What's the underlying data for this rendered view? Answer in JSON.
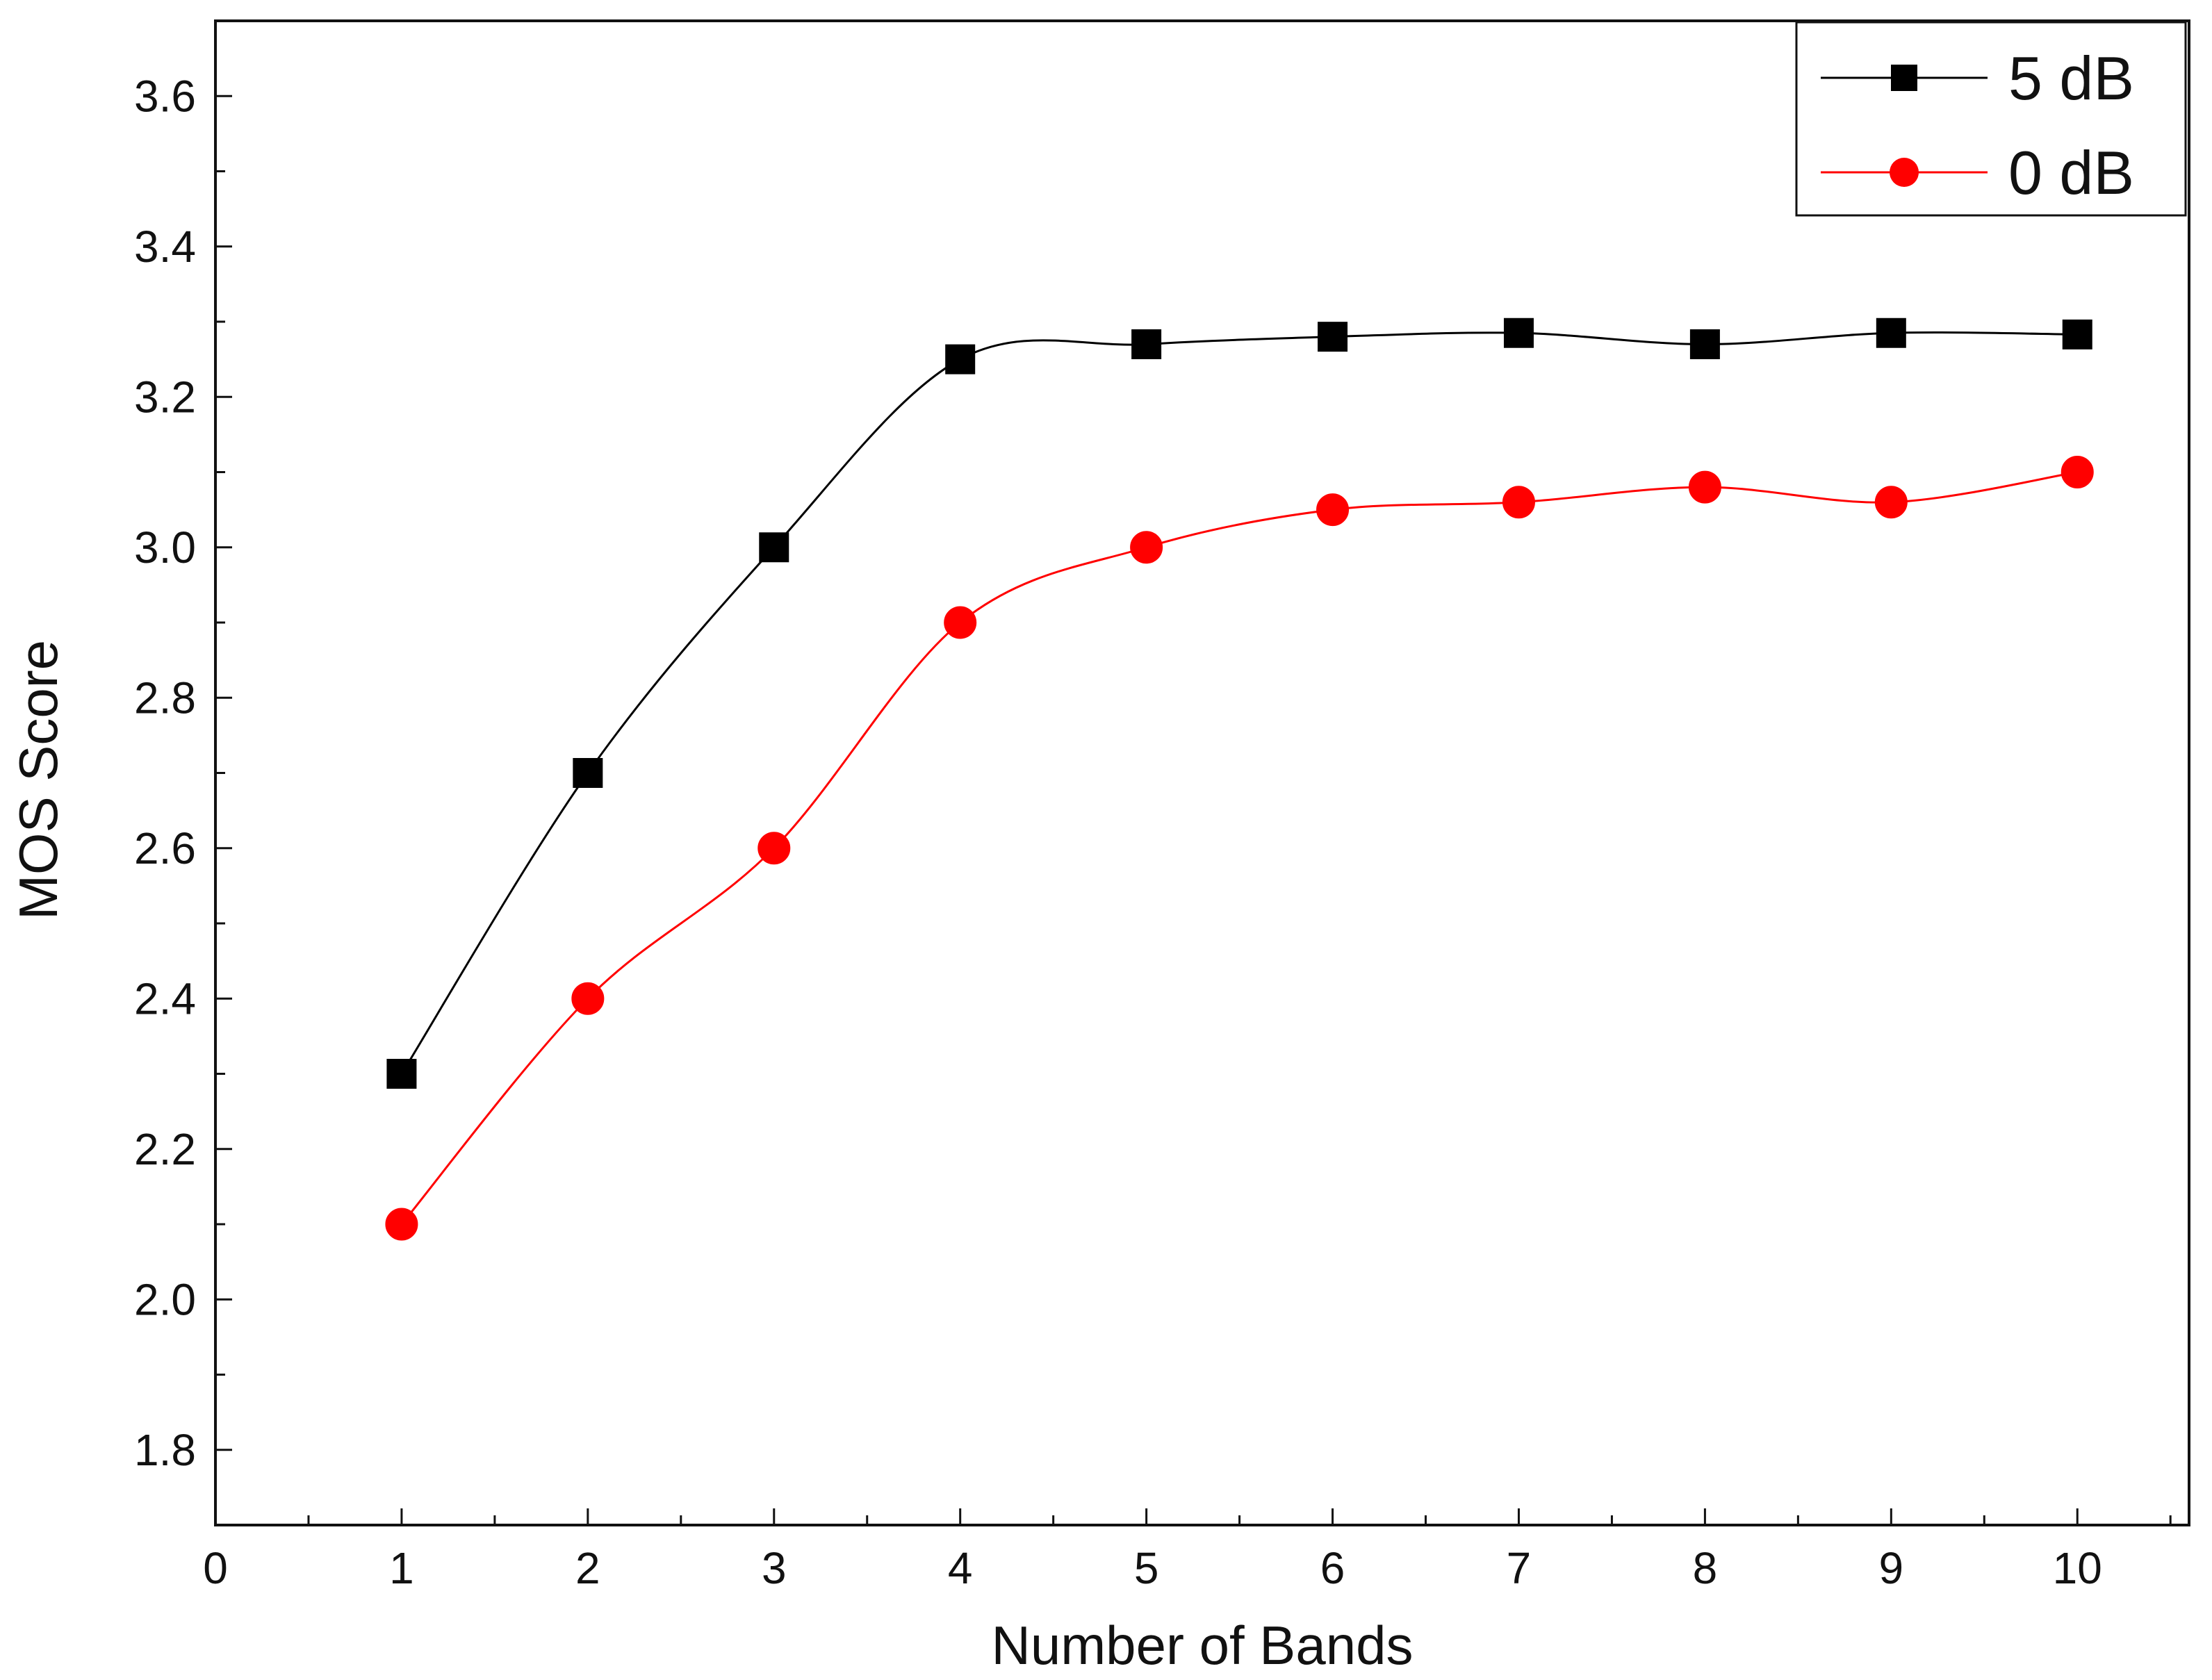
{
  "chart_data": {
    "type": "line",
    "title": "",
    "xlabel": "Number of Bands",
    "ylabel": "MOS Score",
    "xlim": [
      0,
      10.6
    ],
    "ylim": [
      1.7,
      3.7
    ],
    "x": [
      1,
      2,
      3,
      4,
      5,
      6,
      7,
      8,
      9,
      10
    ],
    "x_ticks": [
      0,
      1,
      2,
      3,
      4,
      5,
      6,
      7,
      8,
      9,
      10
    ],
    "x_tick_labels": [
      "0",
      "1",
      "2",
      "3",
      "4",
      "5",
      "6",
      "7",
      "8",
      "9",
      "10"
    ],
    "y_ticks": [
      1.8,
      2.0,
      2.2,
      2.4,
      2.6,
      2.8,
      3.0,
      3.2,
      3.4,
      3.6
    ],
    "y_tick_labels": [
      "1.8",
      "2.0",
      "2.2",
      "2.4",
      "2.6",
      "2.8",
      "3.0",
      "3.2",
      "3.4",
      "3.6"
    ],
    "grid": false,
    "legend_position": "top-right",
    "series": [
      {
        "name": "5 dB",
        "marker": "square",
        "color": "#000000",
        "values": [
          2.3,
          2.7,
          3.0,
          3.25,
          3.27,
          3.28,
          3.285,
          3.27,
          3.285,
          3.283
        ]
      },
      {
        "name": "0 dB",
        "marker": "circle",
        "color": "#ff0000",
        "values": [
          2.1,
          2.4,
          2.6,
          2.9,
          3.0,
          3.05,
          3.06,
          3.08,
          3.06,
          3.1
        ]
      }
    ]
  }
}
